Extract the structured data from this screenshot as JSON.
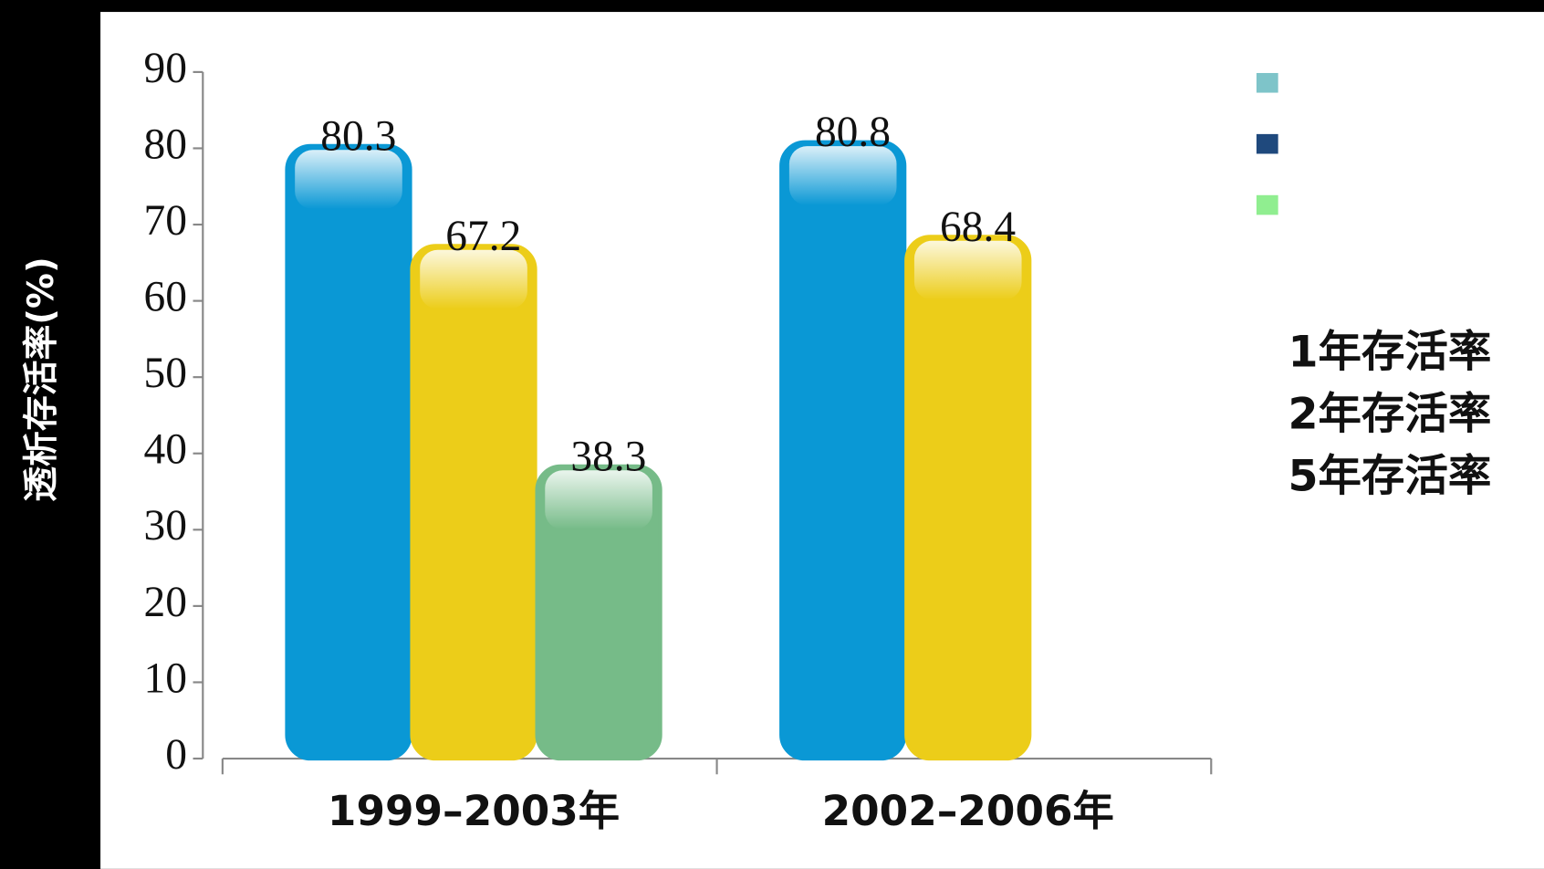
{
  "chart_data": {
    "type": "bar",
    "y_label": "透析存活率(%)",
    "categories": [
      "1999–2003年",
      "2002–2006年"
    ],
    "series": [
      {
        "name": "1年存活率",
        "color": "#0aa0e0",
        "legend_color": "#7ec4c9",
        "values": [
          80.3,
          80.8
        ]
      },
      {
        "name": "2年存活率",
        "color": "#f8d81a",
        "legend_color": "#1f497d",
        "values": [
          67.2,
          68.4
        ]
      },
      {
        "name": "5年存活率",
        "color": "#7cc58f",
        "legend_color": "#90ee90",
        "values": [
          38.3,
          null
        ]
      }
    ],
    "ylim": [
      0,
      90
    ],
    "yticks": [
      0,
      10,
      20,
      30,
      40,
      50,
      60,
      70,
      80,
      90
    ]
  }
}
